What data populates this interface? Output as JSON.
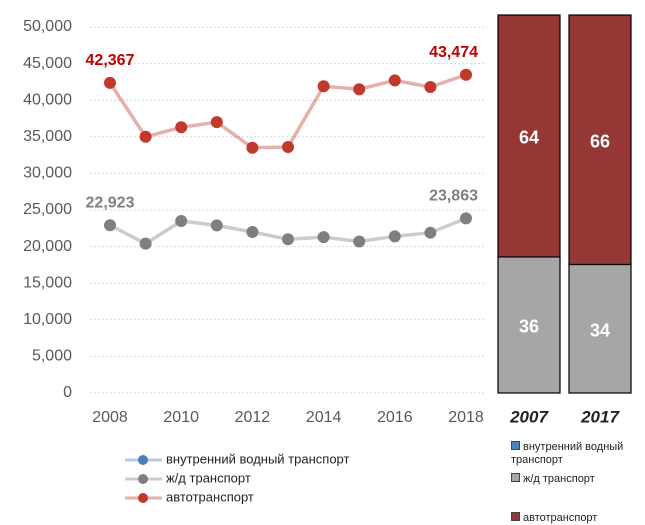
{
  "chart_data": [
    {
      "type": "line",
      "x": [
        2008,
        2009,
        2010,
        2011,
        2012,
        2013,
        2014,
        2015,
        2016,
        2017,
        2018
      ],
      "xlim": [
        2008,
        2018
      ],
      "xticks": [
        2008,
        2010,
        2012,
        2014,
        2016,
        2018
      ],
      "ylim": [
        0,
        50000
      ],
      "yticks": [
        0,
        {
          "value": 5000,
          "label": "5,000"
        },
        {
          "value": 10000,
          "label": "10,000"
        },
        {
          "value": 15000,
          "label": "15,000"
        },
        {
          "value": 20000,
          "label": "20,000"
        },
        {
          "value": 25000,
          "label": "25,000"
        },
        {
          "value": 30000,
          "label": "30,000"
        },
        {
          "value": 35000,
          "label": "35,000"
        },
        {
          "value": 40000,
          "label": "40,000"
        },
        {
          "value": 45000,
          "label": "45,000"
        },
        {
          "value": 50000,
          "label": "50,000"
        }
      ],
      "grid": true,
      "series": [
        {
          "name": "внутренний водный транспорт",
          "color": "#4a7ebb",
          "values": [
            null,
            null,
            null,
            null,
            null,
            null,
            null,
            null,
            null,
            null,
            null
          ]
        },
        {
          "name": "ж/д транспорт",
          "color": "#7f7f7f",
          "values": [
            22923,
            20400,
            23500,
            22900,
            22000,
            21000,
            21300,
            20700,
            21400,
            21900,
            23863
          ],
          "value_labels": [
            "22,923",
            null,
            null,
            null,
            null,
            null,
            null,
            null,
            null,
            null,
            "23,863"
          ]
        },
        {
          "name": "автотранспорт",
          "color": "#c0392b",
          "values": [
            42367,
            35000,
            36300,
            37000,
            33500,
            33600,
            41900,
            41500,
            42700,
            41800,
            43474
          ],
          "value_labels": [
            "42,367",
            null,
            null,
            null,
            null,
            null,
            null,
            null,
            null,
            null,
            "43,474"
          ]
        }
      ]
    },
    {
      "type": "stacked_bar",
      "categories": [
        "2007",
        "2017"
      ],
      "ylim": [
        0,
        100
      ],
      "series": [
        {
          "name": "внутренний водный транспорт",
          "color": "#4f81bd",
          "values": [
            0,
            0
          ]
        },
        {
          "name": "ж/д транспорт",
          "color": "#a6a6a6",
          "values": [
            36,
            34
          ]
        },
        {
          "name": "автотранспорт",
          "color": "#953735",
          "values": [
            64,
            66
          ]
        }
      ]
    }
  ]
}
